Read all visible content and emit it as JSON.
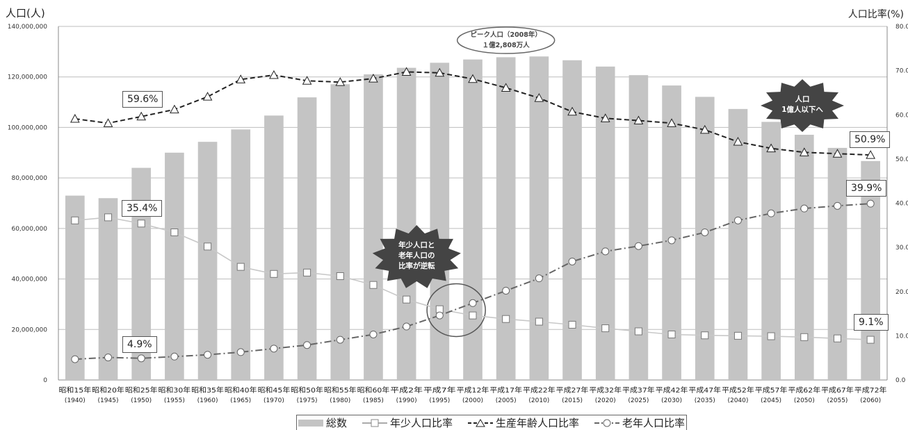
{
  "chart_data": {
    "type": "bar",
    "title": "",
    "ylabel_left": "人口(人)",
    "ylabel_right": "人口比率(%)",
    "ylim_left": [
      0,
      140000000
    ],
    "ylim_right": [
      0,
      80
    ],
    "yticks_left": [
      "0",
      "20,000,000",
      "40,000,000",
      "60,000,000",
      "80,000,000",
      "100,000,000",
      "120,000,000",
      "140,000,000"
    ],
    "yticks_right": [
      "0.0",
      "10.0",
      "20.0",
      "30.0",
      "40.0",
      "50.0",
      "60.0",
      "70.0",
      "80.0"
    ],
    "categories": [
      {
        "era": "昭和15年",
        "year": "(1940)"
      },
      {
        "era": "昭和20年",
        "year": "(1945)"
      },
      {
        "era": "昭和25年",
        "year": "(1950)"
      },
      {
        "era": "昭和30年",
        "year": "(1955)"
      },
      {
        "era": "昭和35年",
        "year": "(1960)"
      },
      {
        "era": "昭和40年",
        "year": "(1965)"
      },
      {
        "era": "昭和45年",
        "year": "(1970)"
      },
      {
        "era": "昭和50年",
        "year": "(1975)"
      },
      {
        "era": "昭和55年",
        "year": "(1980)"
      },
      {
        "era": "昭和60年",
        "year": "(1985)"
      },
      {
        "era": "平成2年",
        "year": "(1990)"
      },
      {
        "era": "平成7年",
        "year": "(1995)"
      },
      {
        "era": "平成12年",
        "year": "(2000)"
      },
      {
        "era": "平成17年",
        "year": "(2005)"
      },
      {
        "era": "平成22年",
        "year": "(2010)"
      },
      {
        "era": "平成27年",
        "year": "(2015)"
      },
      {
        "era": "平成32年",
        "year": "(2020)"
      },
      {
        "era": "平成37年",
        "year": "(2025)"
      },
      {
        "era": "平成42年",
        "year": "(2030)"
      },
      {
        "era": "平成47年",
        "year": "(2035)"
      },
      {
        "era": "平成52年",
        "year": "(2040)"
      },
      {
        "era": "平成57年",
        "year": "(2045)"
      },
      {
        "era": "平成62年",
        "year": "(2050)"
      },
      {
        "era": "平成67年",
        "year": "(2055)"
      },
      {
        "era": "平成72年",
        "year": "(2060)"
      }
    ],
    "series": [
      {
        "name": "総数",
        "type": "bar",
        "axis": "left",
        "color": "#c4c4c4",
        "values": [
          73000000,
          72000000,
          84000000,
          90000000,
          94300000,
          99200000,
          104700000,
          111900000,
          117100000,
          121000000,
          123600000,
          125600000,
          126900000,
          127800000,
          128100000,
          126600000,
          124100000,
          120700000,
          116600000,
          112100000,
          107300000,
          102200000,
          97100000,
          91900000,
          86700000
        ]
      },
      {
        "name": "年少人口比率",
        "type": "line",
        "axis": "right",
        "marker": "square",
        "dash": "solid",
        "color": "#c8c8c8",
        "values": [
          36.1,
          36.8,
          35.4,
          33.4,
          30.2,
          25.6,
          24.0,
          24.3,
          23.5,
          21.5,
          18.2,
          16.0,
          14.6,
          13.8,
          13.2,
          12.5,
          11.7,
          11.0,
          10.3,
          10.1,
          10.0,
          9.9,
          9.7,
          9.4,
          9.1
        ]
      },
      {
        "name": "生産年齢人口比率",
        "type": "line",
        "axis": "right",
        "marker": "triangle",
        "dash": "dashed",
        "color": "#222222",
        "values": [
          59.1,
          58.1,
          59.6,
          61.2,
          64.1,
          68.0,
          69.0,
          67.7,
          67.4,
          68.2,
          69.7,
          69.5,
          68.1,
          66.1,
          63.8,
          60.7,
          59.2,
          58.7,
          58.1,
          56.6,
          53.9,
          52.4,
          51.5,
          51.2,
          50.9
        ]
      },
      {
        "name": "老年人口比率",
        "type": "line",
        "axis": "right",
        "marker": "circle",
        "dash": "dashdot",
        "color": "#666666",
        "values": [
          4.7,
          5.1,
          4.9,
          5.3,
          5.7,
          6.3,
          7.1,
          7.9,
          9.1,
          10.3,
          12.1,
          14.6,
          17.4,
          20.2,
          23.0,
          26.8,
          29.1,
          30.3,
          31.6,
          33.4,
          36.1,
          37.7,
          38.8,
          39.4,
          39.9
        ]
      }
    ],
    "annotations": {
      "peak_line1": "ピーク人口（2008年）",
      "peak_line2": "１億2,808万人",
      "crossover_lines": [
        "年少人口と",
        "老年人口の",
        "比率が逆転"
      ],
      "below100m_lines": [
        "人口",
        "1億人以下へ"
      ],
      "label_working_1950": "59.6%",
      "label_child_1950": "35.4%",
      "label_elderly_1950": "4.9%",
      "label_working_2060": "50.9%",
      "label_elderly_2060": "39.9%",
      "label_child_2060": "9.1%"
    },
    "legend_position": "bottom",
    "grid": "horizontal"
  }
}
